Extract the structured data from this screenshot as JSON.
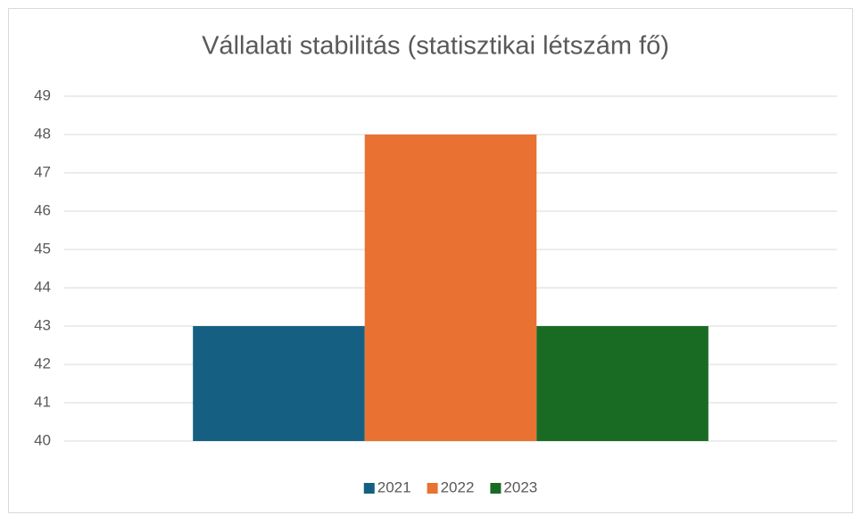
{
  "chart_data": {
    "type": "bar",
    "title": "Vállalati stabilitás (statisztikai létszám fő)",
    "categories": [
      null
    ],
    "series": [
      {
        "name": "2021",
        "color": "#156082",
        "values": [
          43
        ]
      },
      {
        "name": "2022",
        "color": "#e97132",
        "values": [
          48
        ]
      },
      {
        "name": "2023",
        "color": "#196b24",
        "values": [
          43
        ]
      }
    ],
    "ylim": [
      40,
      49
    ],
    "yticks": [
      40,
      41,
      42,
      43,
      44,
      45,
      46,
      47,
      48,
      49
    ],
    "grid": true,
    "legend": "bottom"
  }
}
